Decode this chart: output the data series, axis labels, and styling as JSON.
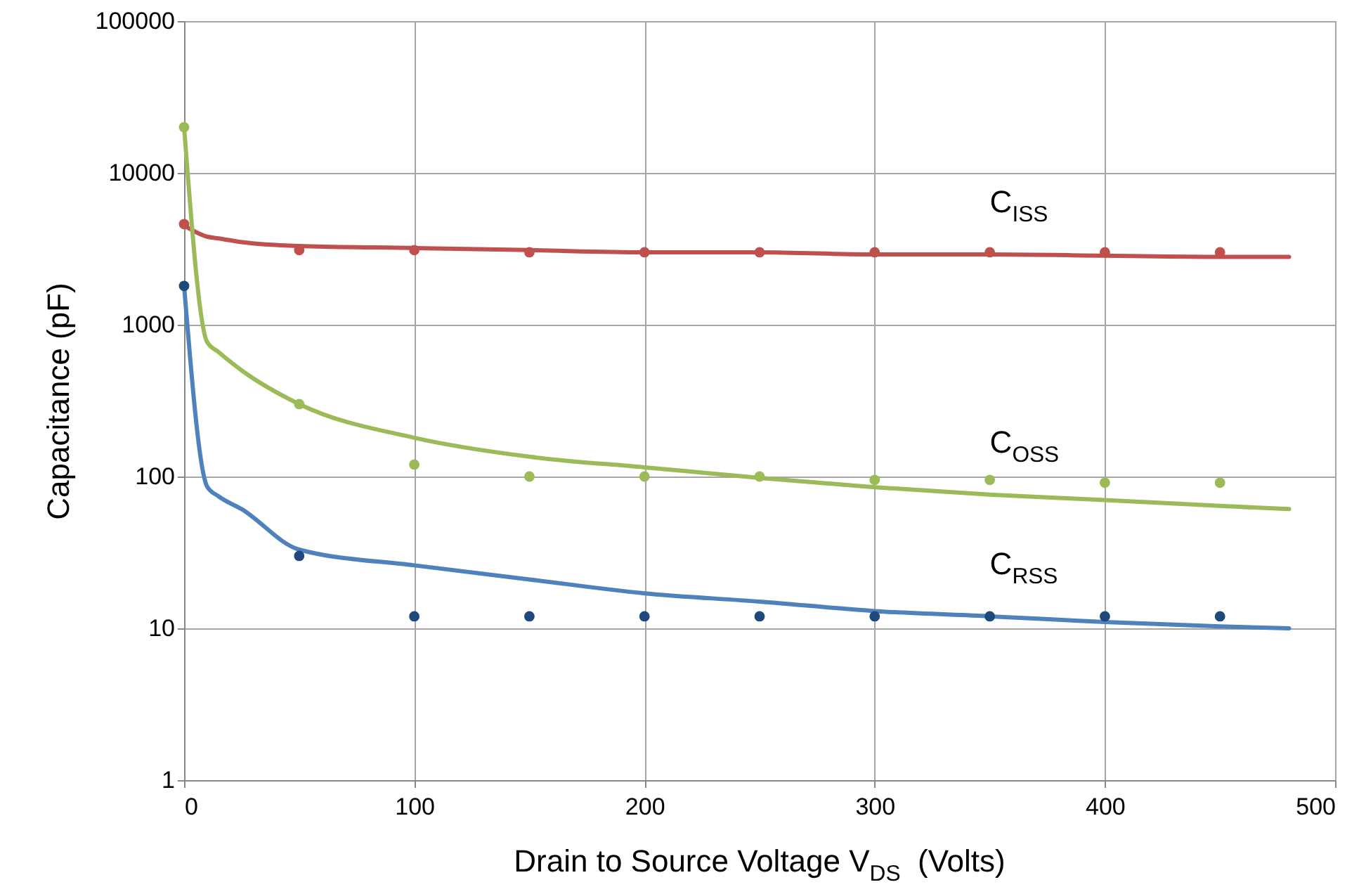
{
  "chart_data": {
    "type": "line",
    "xlabel": "Drain to Source Voltage V$_{DS}$  (Volts)",
    "ylabel": "Capacitance (pF)",
    "xlim": [
      0,
      500
    ],
    "xticks": [
      0,
      100,
      200,
      300,
      400,
      500
    ],
    "ylim": [
      1,
      100000
    ],
    "yticks": [
      1,
      10,
      100,
      1000,
      10000,
      100000
    ],
    "log": true,
    "grid": true,
    "series": [
      {
        "name": "C$_{ISS}$",
        "type": "line",
        "marker": "none",
        "color": "#c0504d",
        "x": [
          0,
          10,
          15,
          25,
          50,
          100,
          150,
          200,
          250,
          300,
          350,
          400,
          450,
          480
        ],
        "values": [
          4500,
          3800,
          3700,
          3500,
          3300,
          3200,
          3100,
          3000,
          3000,
          2900,
          2900,
          2850,
          2800,
          2800
        ]
      },
      {
        "name": "C$_{OSS}$",
        "type": "line",
        "marker": "none",
        "color": "#9bbb59",
        "x": [
          0,
          10,
          15,
          25,
          50,
          100,
          150,
          200,
          250,
          300,
          350,
          400,
          450,
          480
        ],
        "values": [
          20000,
          770,
          660,
          500,
          300,
          180,
          135,
          115,
          98,
          85,
          76,
          70,
          64,
          61
        ]
      },
      {
        "name": "C$_{RSS}$",
        "type": "line",
        "marker": "none",
        "color": "#4f81bd",
        "x": [
          0,
          10,
          15,
          25,
          50,
          100,
          150,
          200,
          250,
          300,
          350,
          400,
          450,
          480
        ],
        "values": [
          1800,
          86,
          74,
          61,
          33,
          26,
          21,
          17,
          15,
          13,
          12,
          11,
          10.3,
          10
        ]
      },
      {
        "type": "scatter",
        "marker": "circle",
        "color": "#c0504d",
        "x": [
          0,
          50,
          100,
          150,
          200,
          250,
          300,
          350,
          400,
          450
        ],
        "values": [
          4600,
          3100,
          3100,
          3000,
          3000,
          3000,
          3000,
          3000,
          3000,
          3000
        ]
      },
      {
        "type": "scatter",
        "marker": "circle",
        "color": "#9bbb59",
        "x": [
          0,
          50,
          100,
          150,
          200,
          250,
          300,
          350,
          400,
          450
        ],
        "values": [
          20000,
          300,
          120,
          100,
          100,
          100,
          95,
          95,
          91,
          91
        ]
      },
      {
        "type": "scatter",
        "marker": "circle",
        "color": "#1f497d",
        "x": [
          0,
          50,
          100,
          150,
          200,
          250,
          300,
          350,
          400,
          450
        ],
        "values": [
          1800,
          30,
          12,
          12,
          12,
          12,
          12,
          12,
          12,
          12
        ]
      }
    ]
  }
}
